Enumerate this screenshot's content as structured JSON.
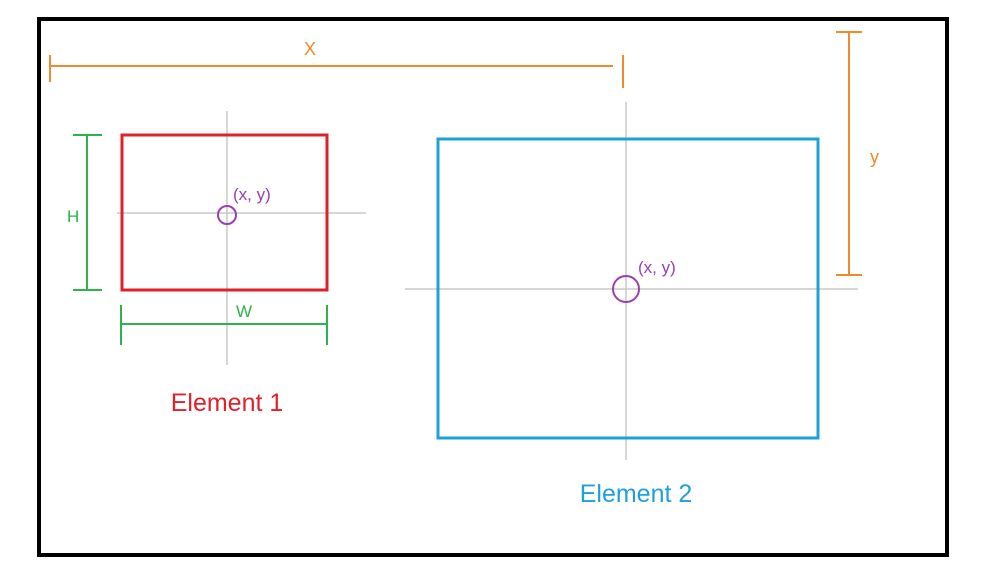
{
  "labels": {
    "x_distance": "X",
    "y_distance": "y",
    "height": "H",
    "width": "W",
    "center1": "(x, y)",
    "center2": "(x, y)",
    "element1": "Element 1",
    "element2": "Element 2"
  },
  "colors": {
    "frame": "#000000",
    "element1": "#e0202a",
    "element2": "#1fa0db",
    "measure_xy": "#f08a2a",
    "measure_wh": "#2db34a",
    "center": "#9a3fb0",
    "crosshair": "#c8c8c8"
  }
}
